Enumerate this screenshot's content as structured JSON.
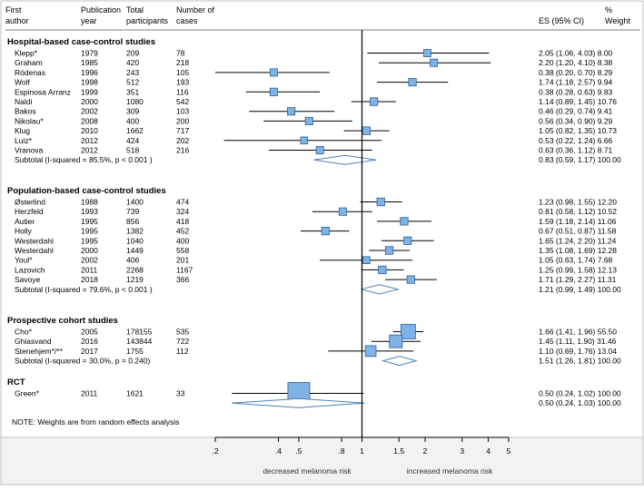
{
  "chart_data": {
    "type": "forest",
    "xscale": "log",
    "xlim": [
      0.2,
      5
    ],
    "xticks": [
      ".2",
      ".4",
      ".5",
      ".8",
      "1",
      "1.5",
      "2",
      "3",
      "4",
      "5"
    ],
    "xlabel_left": "decreased melanoma risk",
    "xlabel_right": "increased melanoma risk",
    "headers": {
      "author": [
        "First",
        "author"
      ],
      "year": [
        "Publication",
        "year"
      ],
      "participants": [
        "Total",
        "participants"
      ],
      "cases": [
        "Number of",
        "cases"
      ],
      "es": "ES (95% CI)",
      "weight": [
        "%",
        "Weight"
      ]
    },
    "groups": [
      {
        "title": "Hospital-based case-control studies",
        "studies": [
          {
            "author": "Klepp*",
            "year": "1979",
            "participants": "209",
            "cases": "78",
            "es": 2.05,
            "lo": 1.06,
            "hi": 4.03,
            "weight": 8.0,
            "text": "2.05 (1.06, 4.03) 8.00"
          },
          {
            "author": "Graham",
            "year": "1985",
            "participants": "420",
            "cases": "218",
            "es": 2.2,
            "lo": 1.2,
            "hi": 4.1,
            "weight": 8.38,
            "text": "2.20 (1.20, 4.10) 8.38"
          },
          {
            "author": "Ródenas",
            "year": "1996",
            "participants": "243",
            "cases": "105",
            "es": 0.38,
            "lo": 0.2,
            "hi": 0.7,
            "weight": 8.29,
            "text": "0.38 (0.20, 0.70) 8.29"
          },
          {
            "author": "Wolf",
            "year": "1998",
            "participants": "512",
            "cases": "193",
            "es": 1.74,
            "lo": 1.18,
            "hi": 2.57,
            "weight": 9.94,
            "text": "1.74 (1.18, 2.57) 9.94"
          },
          {
            "author": "Espinosa Arranz",
            "year": "1999",
            "participants": "351",
            "cases": "116",
            "es": 0.38,
            "lo": 0.28,
            "hi": 0.63,
            "weight": 9.83,
            "text": "0.38 (0.28, 0.63) 9.83"
          },
          {
            "author": "Naldi",
            "year": "2000",
            "participants": "1080",
            "cases": "542",
            "es": 1.14,
            "lo": 0.89,
            "hi": 1.45,
            "weight": 10.76,
            "text": "1.14 (0.89, 1.45) 10.76"
          },
          {
            "author": "Bakos",
            "year": "2002",
            "participants": "309",
            "cases": "103",
            "es": 0.46,
            "lo": 0.29,
            "hi": 0.74,
            "weight": 9.41,
            "text": "0.46 (0.29, 0.74) 9.41"
          },
          {
            "author": "Nikolau*",
            "year": "2008",
            "participants": "400",
            "cases": "200",
            "es": 0.56,
            "lo": 0.34,
            "hi": 0.9,
            "weight": 9.29,
            "text": "0.56 (0.34, 0.90) 9.29"
          },
          {
            "author": "Klug",
            "year": "2010",
            "participants": "1662",
            "cases": "717",
            "es": 1.05,
            "lo": 0.82,
            "hi": 1.35,
            "weight": 10.73,
            "text": "1.05 (0.82, 1.35) 10.73"
          },
          {
            "author": "Luiz*",
            "year": "2012",
            "participants": "424",
            "cases": "202",
            "es": 0.53,
            "lo": 0.22,
            "hi": 1.24,
            "weight": 6.66,
            "text": "0.53 (0.22, 1.24) 6.66"
          },
          {
            "author": "Vranova",
            "year": "2012",
            "participants": "518",
            "cases": "216",
            "es": 0.63,
            "lo": 0.36,
            "hi": 1.12,
            "weight": 8.71,
            "text": "0.63 (0.36, 1.12) 8.71"
          }
        ],
        "subtotal": {
          "label": "Subtotal  (I-squared = 85.5%, p < 0.001 )",
          "es": 0.83,
          "lo": 0.59,
          "hi": 1.17,
          "text": "0.83 (0.59, 1.17) 100.00"
        }
      },
      {
        "title": "Population-based case-control studies",
        "studies": [
          {
            "author": "Østerlind",
            "year": "1988",
            "participants": "1400",
            "cases": "474",
            "es": 1.23,
            "lo": 0.98,
            "hi": 1.55,
            "weight": 12.2,
            "text": "1.23 (0.98, 1.55) 12.20"
          },
          {
            "author": "Herzfeld",
            "year": "1993",
            "participants": "739",
            "cases": "324",
            "es": 0.81,
            "lo": 0.58,
            "hi": 1.12,
            "weight": 10.52,
            "text": "0.81 (0.58, 1.12) 10.52"
          },
          {
            "author": "Autier",
            "year": "1995",
            "participants": "856",
            "cases": "418",
            "es": 1.59,
            "lo": 1.18,
            "hi": 2.14,
            "weight": 11.06,
            "text": "1.59 (1.18, 2.14) 11.06"
          },
          {
            "author": "Holly",
            "year": "1995",
            "participants": "1382",
            "cases": "452",
            "es": 0.67,
            "lo": 0.51,
            "hi": 0.87,
            "weight": 11.58,
            "text": "0.67 (0.51, 0.87) 11.58"
          },
          {
            "author": "Westerdahl",
            "year": "1995",
            "participants": "1040",
            "cases": "400",
            "es": 1.65,
            "lo": 1.24,
            "hi": 2.2,
            "weight": 11.24,
            "text": "1.65 (1.24, 2.20) 11.24"
          },
          {
            "author": "Westerdahl",
            "year": "2000",
            "participants": "1449",
            "cases": "558",
            "es": 1.35,
            "lo": 1.08,
            "hi": 1.69,
            "weight": 12.28,
            "text": "1.35 (1.08, 1.69) 12.28"
          },
          {
            "author": "Youl*",
            "year": "2002",
            "participants": "406",
            "cases": "201",
            "es": 1.05,
            "lo": 0.63,
            "hi": 1.74,
            "weight": 7.68,
            "text": "1.05 (0.63, 1.74) 7.68"
          },
          {
            "author": "Lazovich",
            "year": "2011",
            "participants": "2268",
            "cases": "1167",
            "es": 1.25,
            "lo": 0.99,
            "hi": 1.58,
            "weight": 12.13,
            "text": "1.25 (0.99, 1.58) 12.13"
          },
          {
            "author": "Savoye",
            "year": "2018",
            "participants": "1219",
            "cases": "366",
            "es": 1.71,
            "lo": 1.29,
            "hi": 2.27,
            "weight": 11.31,
            "text": "1.71 (1.29, 2.27) 11.31"
          }
        ],
        "subtotal": {
          "label": "Subtotal  (I-squared = 79.6%, p < 0.001 )",
          "es": 1.21,
          "lo": 0.99,
          "hi": 1.49,
          "text": "1.21 (0.99, 1.49) 100.00"
        }
      },
      {
        "title": "Prospective cohort studies",
        "studies": [
          {
            "author": "Cho*",
            "year": "2005",
            "participants": "178155",
            "cases": "535",
            "es": 1.66,
            "lo": 1.41,
            "hi": 1.96,
            "weight": 55.5,
            "text": "1.66 (1.41, 1.96) 55.50"
          },
          {
            "author": "Ghiasvand",
            "year": "2016",
            "participants": "143844",
            "cases": "722",
            "es": 1.45,
            "lo": 1.11,
            "hi": 1.9,
            "weight": 31.46,
            "text": "1.45 (1.11, 1.90) 31.46"
          },
          {
            "author": "Stenehjem*/**",
            "year": "2017",
            "participants": "1755",
            "cases": "112",
            "es": 1.1,
            "lo": 0.69,
            "hi": 1.76,
            "weight": 13.04,
            "text": "1.10 (0.69, 1.76) 13.04"
          }
        ],
        "subtotal": {
          "label": "Subtotal  (I-squared = 30.0%, p = 0.240)",
          "es": 1.51,
          "lo": 1.26,
          "hi": 1.81,
          "text": "1.51 (1.26, 1.81) 100.00"
        }
      },
      {
        "title": "RCT",
        "studies": [
          {
            "author": "Green*",
            "year": "2011",
            "participants": "1621",
            "cases": "33",
            "es": 0.5,
            "lo": 0.24,
            "hi": 1.02,
            "weight": 100.0,
            "text": "0.50 (0.24, 1.02) 100.00"
          }
        ],
        "subtotal": {
          "label": "",
          "es": 0.5,
          "lo": 0.24,
          "hi": 1.03,
          "text": "0.50 (0.24, 1.03) 100.00"
        }
      }
    ],
    "note": "NOTE: Weights are from random effects analysis",
    "colors": {
      "marker": "#7fb2e5",
      "marker_stroke": "#2f5f93",
      "diamond": "#4f7fb5",
      "axis_bg": "#f2f2f2"
    }
  }
}
